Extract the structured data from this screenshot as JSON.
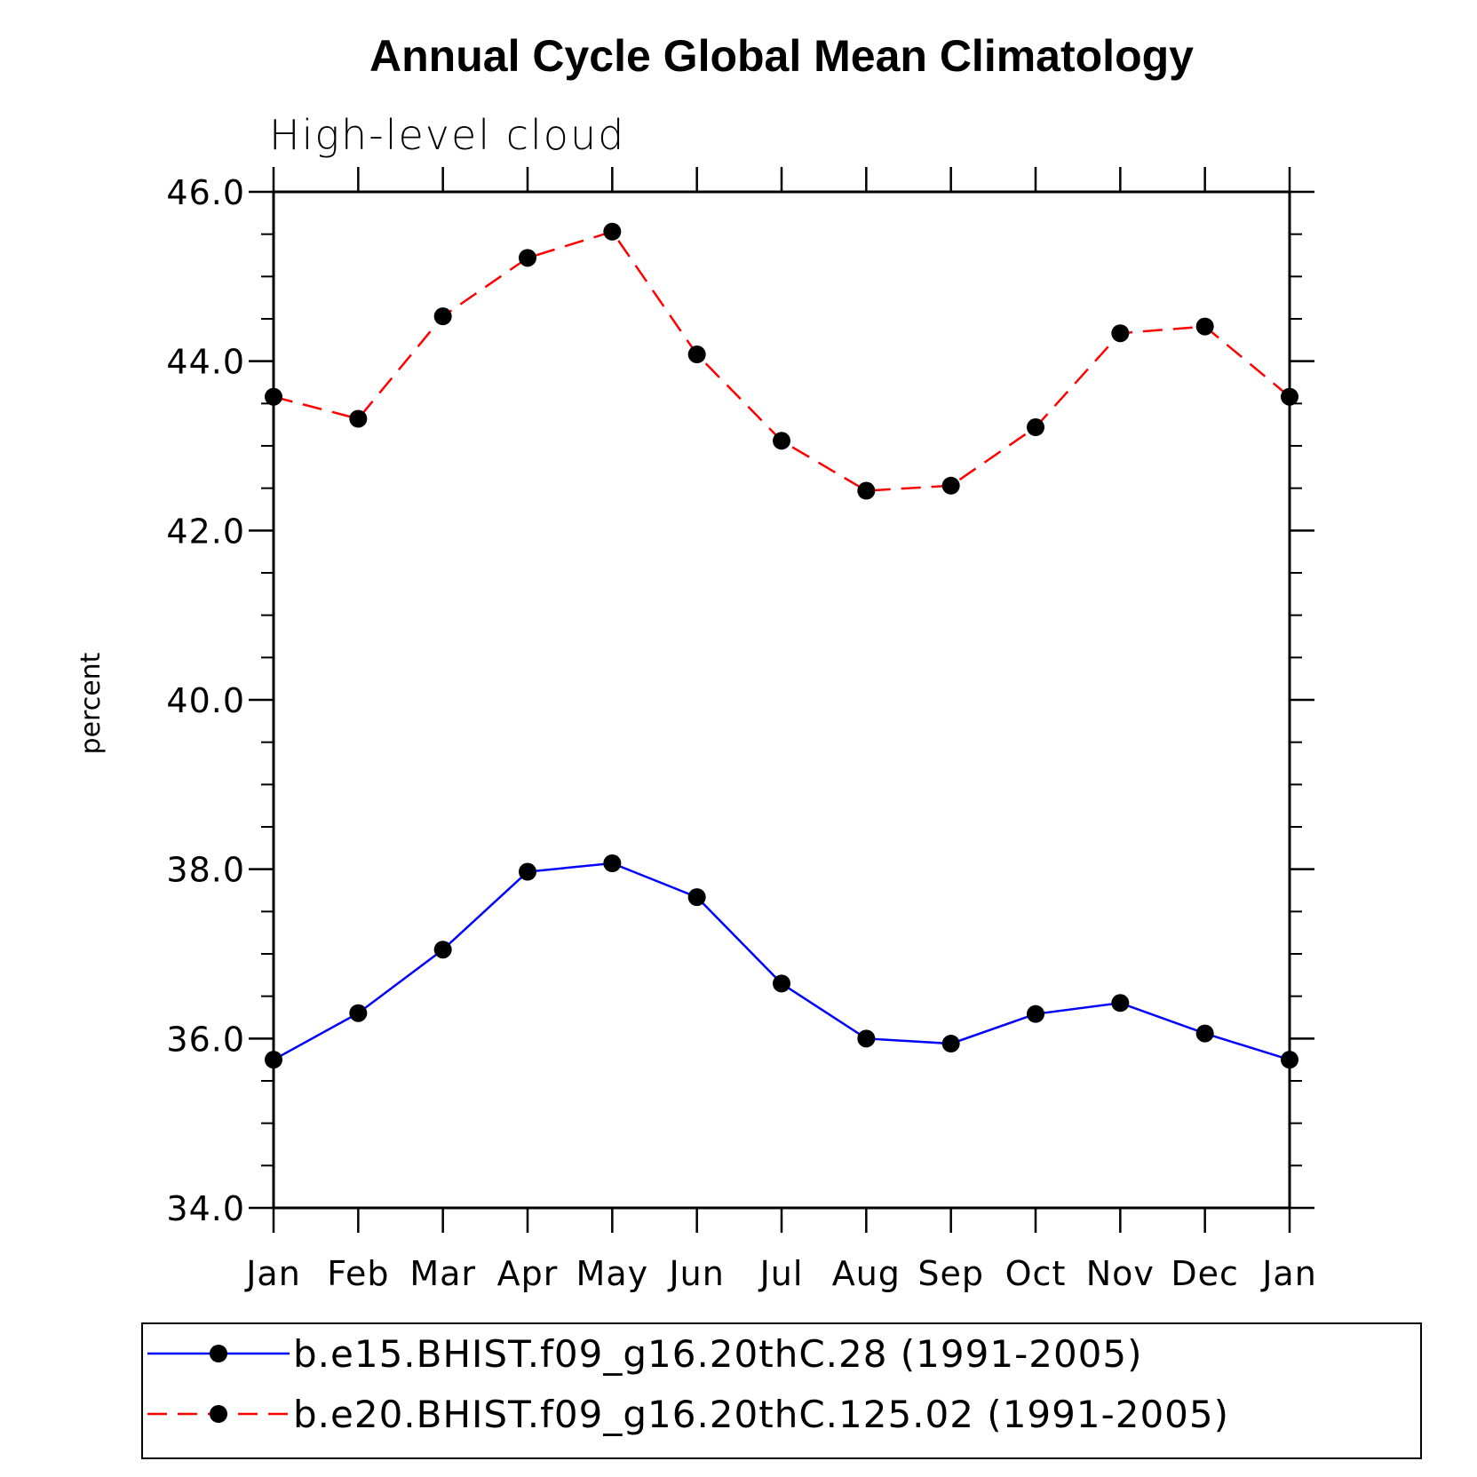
{
  "chart_data": {
    "type": "line",
    "title": "Annual Cycle Global Mean Climatology",
    "subtitle": "High-level cloud",
    "xlabel": "",
    "ylabel": "percent",
    "categories": [
      "Jan",
      "Feb",
      "Mar",
      "Apr",
      "May",
      "Jun",
      "Jul",
      "Aug",
      "Sep",
      "Oct",
      "Nov",
      "Dec",
      "Jan"
    ],
    "yticks": [
      "34.0",
      "36.0",
      "38.0",
      "40.0",
      "42.0",
      "44.0",
      "46.0"
    ],
    "ylim": [
      34,
      46
    ],
    "grid": false,
    "legend_position": "bottom",
    "series": [
      {
        "name": "b.e15.BHIST.f09_g16.20thC.28 (1991-2005)",
        "color": "#0000ff",
        "line_style": "solid",
        "marker": "filled-circle",
        "values": [
          35.75,
          36.3,
          37.05,
          37.97,
          38.07,
          37.67,
          36.65,
          36.0,
          35.94,
          36.29,
          36.42,
          36.06,
          35.75
        ]
      },
      {
        "name": "b.e20.BHIST.f09_g16.20thC.125.02 (1991-2005)",
        "color": "#ff0000",
        "line_style": "dashed",
        "marker": "filled-circle",
        "values": [
          43.58,
          43.32,
          44.53,
          45.22,
          45.53,
          44.08,
          43.06,
          42.47,
          42.53,
          43.22,
          44.33,
          44.41,
          43.58
        ]
      }
    ]
  }
}
